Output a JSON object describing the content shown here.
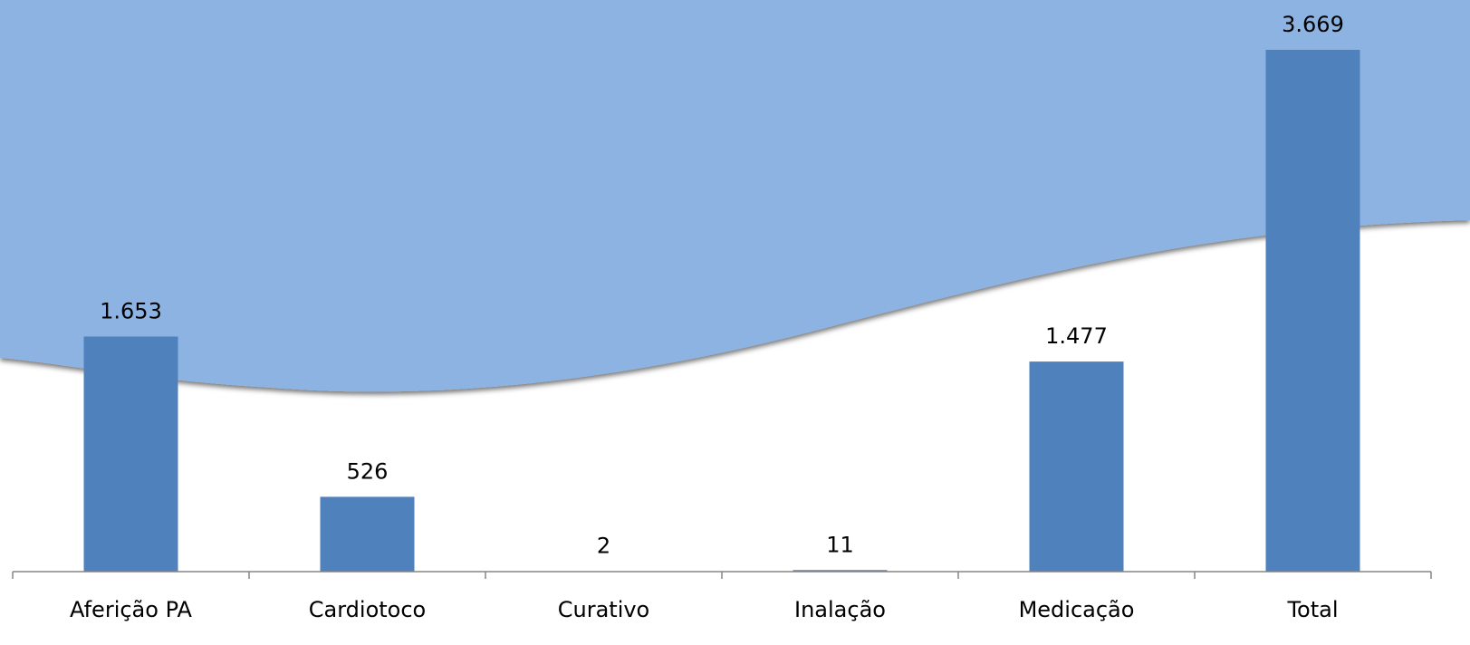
{
  "chart_data": {
    "type": "bar",
    "categories": [
      "Aferição PA",
      "Cardiotoco",
      "Curativo",
      "Inalação",
      "Medicação",
      "Total"
    ],
    "values": [
      1653,
      526,
      2,
      11,
      1477,
      3669
    ],
    "value_labels": [
      "1.653",
      "526",
      "2",
      "11",
      "1.477",
      "3.669"
    ],
    "color": "#4f81bd"
  }
}
